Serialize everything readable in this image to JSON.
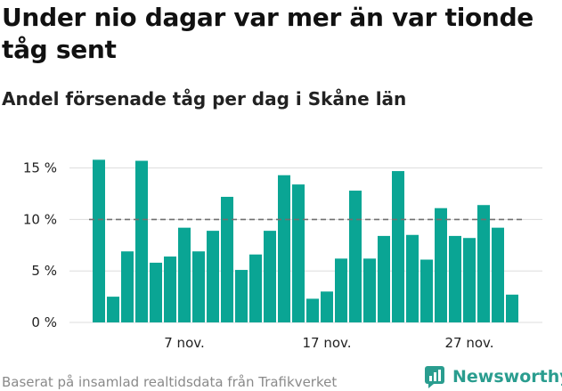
{
  "title": "Under nio dagar var mer än var tionde tåg sent",
  "subtitle": "Andel försenade tåg per dag i Skåne län",
  "footer": {
    "source": "Baserat på insamlad realtidsdata från Trafikverket",
    "brand": "Newsworthy"
  },
  "colors": {
    "bar": "#0aa594",
    "reference_line": "#707070",
    "grid": "#dddddd",
    "brand": "#2a9d8f"
  },
  "icons": {
    "brand_logo": "newsworthy-logo-icon"
  },
  "chart_data": {
    "type": "bar",
    "x_start_day": 1,
    "month_label": "nov.",
    "values": [
      15.8,
      2.5,
      6.9,
      15.7,
      5.8,
      6.4,
      9.2,
      6.9,
      8.9,
      12.2,
      5.1,
      6.6,
      8.9,
      14.3,
      13.4,
      2.3,
      3.0,
      6.2,
      12.8,
      6.2,
      8.4,
      14.7,
      8.5,
      6.1,
      11.1,
      8.4,
      8.2,
      11.4,
      9.2,
      2.7
    ],
    "ylim": [
      0,
      17
    ],
    "yticks": [
      0,
      5,
      10,
      15
    ],
    "ytick_labels": [
      "0 %",
      "5 %",
      "10 %",
      "15 %"
    ],
    "xtick_days": [
      7,
      17,
      27
    ],
    "xtick_labels": [
      "7 nov.",
      "17 nov.",
      "27 nov."
    ],
    "reference_line": 10,
    "grid": true
  }
}
